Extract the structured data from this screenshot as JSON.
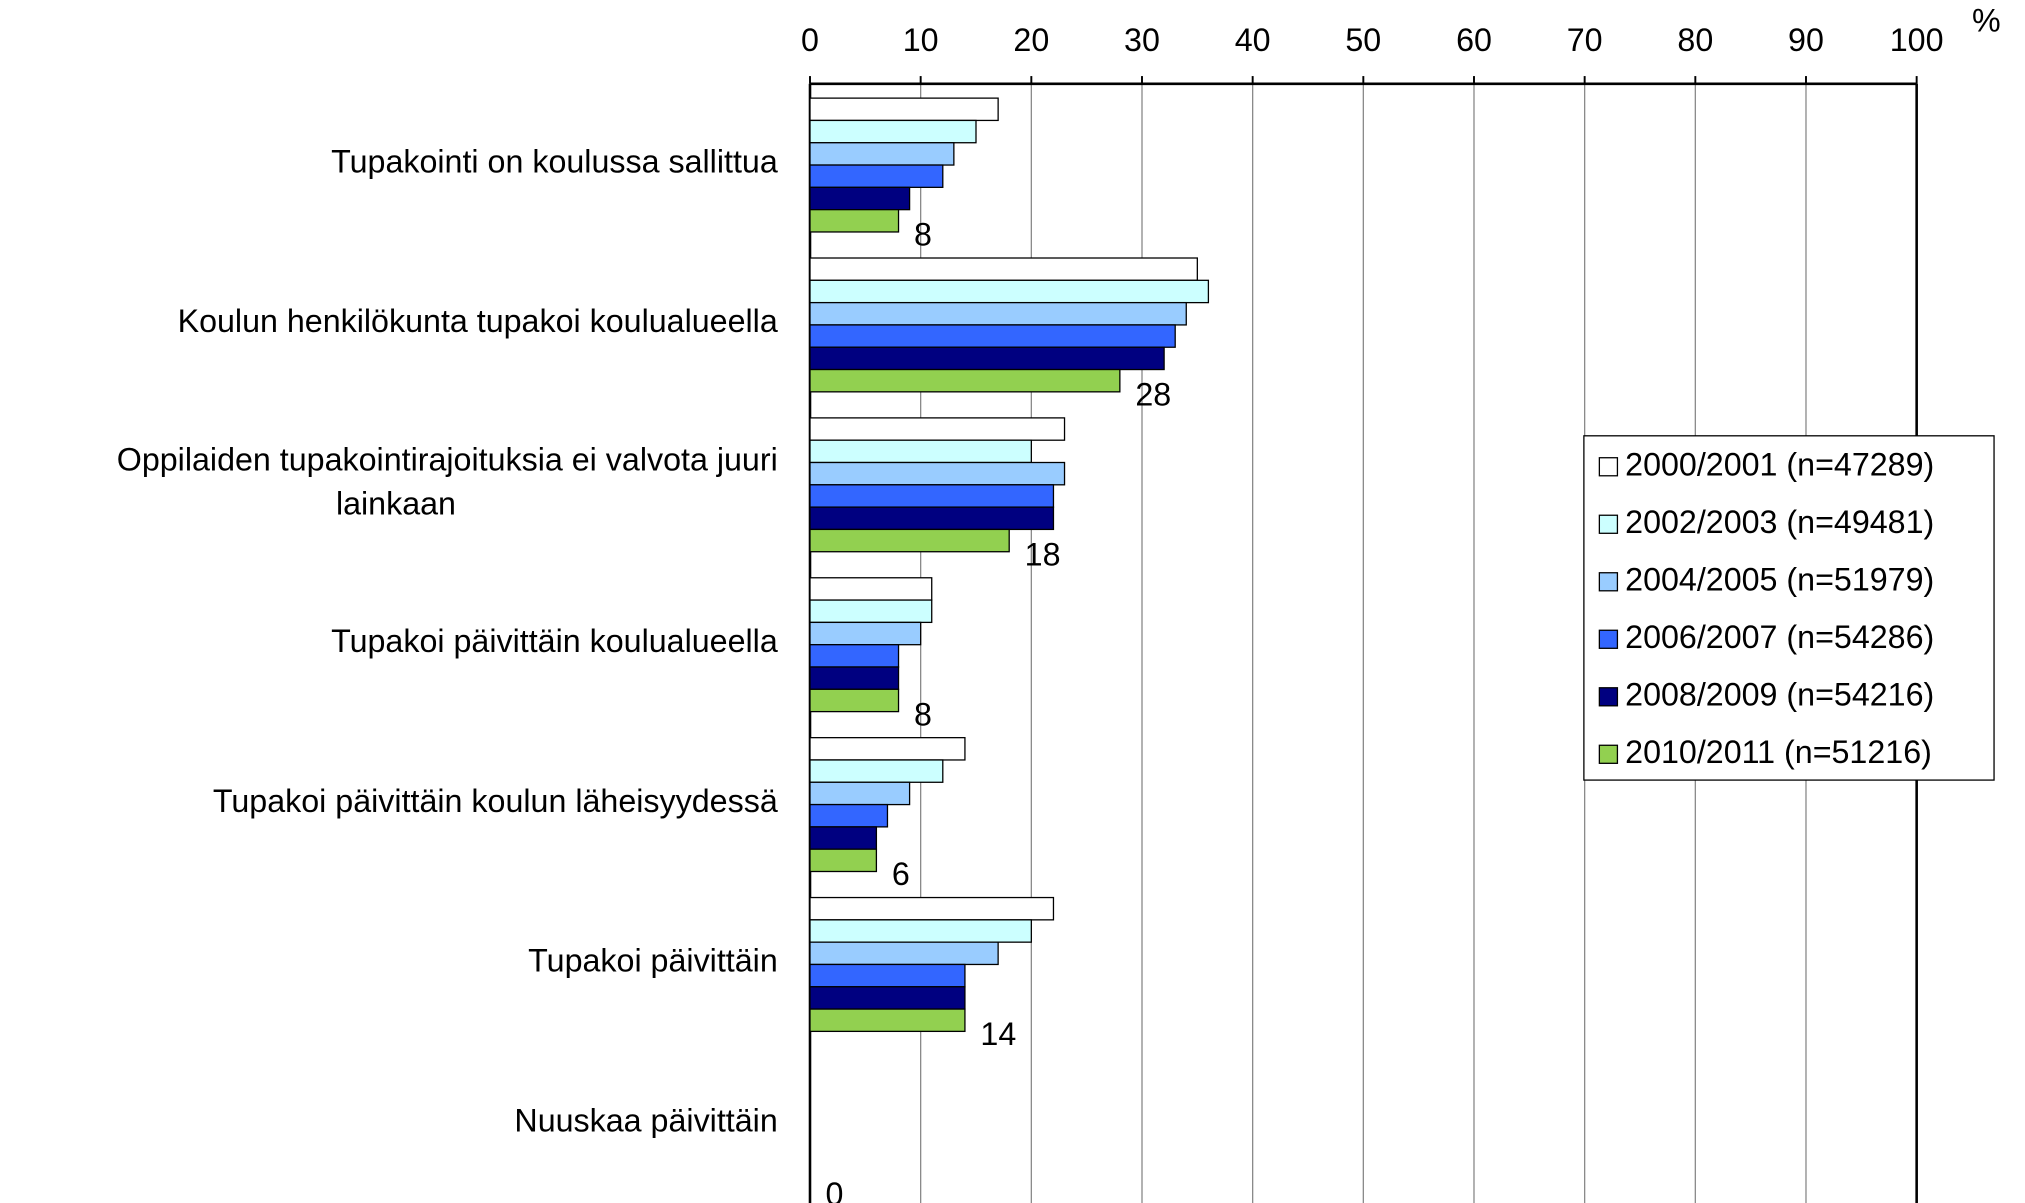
{
  "chart_data": {
    "type": "bar",
    "orientation": "horizontal",
    "unit_label": "%",
    "categories": [
      "Tupakointi on koulussa sallittua",
      "Koulun henkilökunta tupakoi koulualueella",
      "Oppilaiden tupakointirajoituksia ei valvota juuri lainkaan",
      "Tupakoi päivittäin koulualueella",
      "Tupakoi päivittäin koulun läheisyydessä",
      "Tupakoi päivittäin",
      "Nuuskaa päivittäin"
    ],
    "series": [
      {
        "name": "2000/2001 (n=47289)",
        "color": "#ffffff",
        "values": [
          17,
          35,
          23,
          11,
          14,
          22,
          null
        ]
      },
      {
        "name": "2002/2003 (n=49481)",
        "color": "#ccffff",
        "values": [
          15,
          36,
          20,
          11,
          12,
          20,
          null
        ]
      },
      {
        "name": "2004/2005 (n=51979)",
        "color": "#99ccff",
        "values": [
          13,
          34,
          23,
          10,
          9,
          17,
          null
        ]
      },
      {
        "name": "2006/2007 (n=54286)",
        "color": "#3366ff",
        "values": [
          12,
          33,
          22,
          8,
          7,
          14,
          null
        ]
      },
      {
        "name": "2008/2009 (n=54216)",
        "color": "#000080",
        "values": [
          9,
          32,
          22,
          8,
          6,
          14,
          null
        ]
      },
      {
        "name": "2010/2011 (n=51216)",
        "color": "#92d050",
        "values": [
          8,
          28,
          18,
          8,
          6,
          14,
          0
        ],
        "data_labels": true
      }
    ],
    "xlim": [
      0,
      100
    ],
    "xticks": [
      0,
      10,
      20,
      30,
      40,
      50,
      60,
      70,
      80,
      90,
      100
    ],
    "grid": true,
    "legend": "right"
  }
}
